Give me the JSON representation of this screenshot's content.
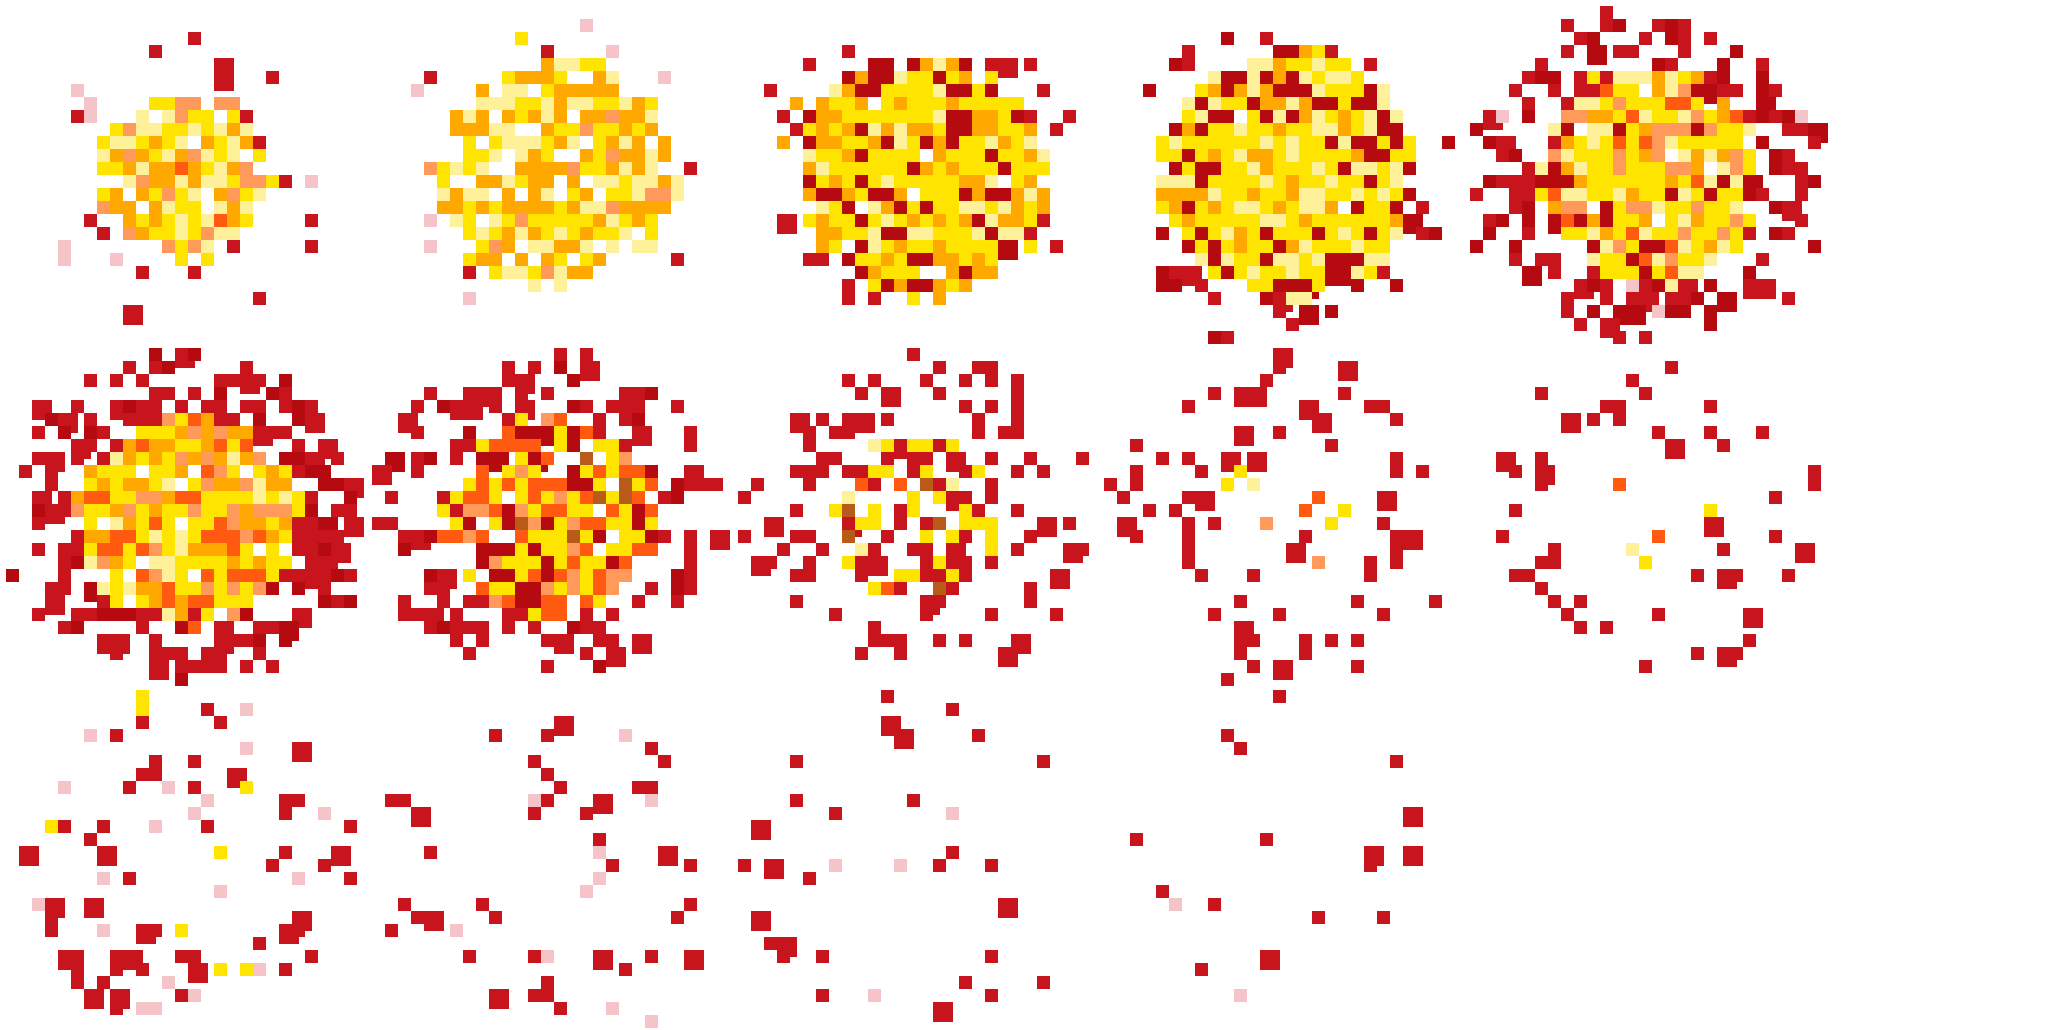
{
  "sprite_sheet": {
    "columns": 5,
    "rows": 3,
    "frame_count": 14,
    "background": "#ffffff"
  },
  "palette": {
    "red": "#c8141c",
    "dark_red": "#b40a10",
    "orange": "#ff5a10",
    "amber": "#ffa800",
    "peach": "#ff9a5a",
    "yellow": "#ffe400",
    "pale_yellow": "#fff09a",
    "brown": "#b85a18",
    "pink": "#f4c4c8"
  },
  "frames": [
    {
      "stage": "ignition"
    },
    {
      "stage": "expansion"
    },
    {
      "stage": "fireball"
    },
    {
      "stage": "fireball"
    },
    {
      "stage": "peak"
    },
    {
      "stage": "peak"
    },
    {
      "stage": "burning"
    },
    {
      "stage": "collapse"
    },
    {
      "stage": "scatter"
    },
    {
      "stage": "scatter"
    },
    {
      "stage": "sparks"
    },
    {
      "stage": "embers"
    },
    {
      "stage": "embers"
    },
    {
      "stage": "fade"
    }
  ]
}
